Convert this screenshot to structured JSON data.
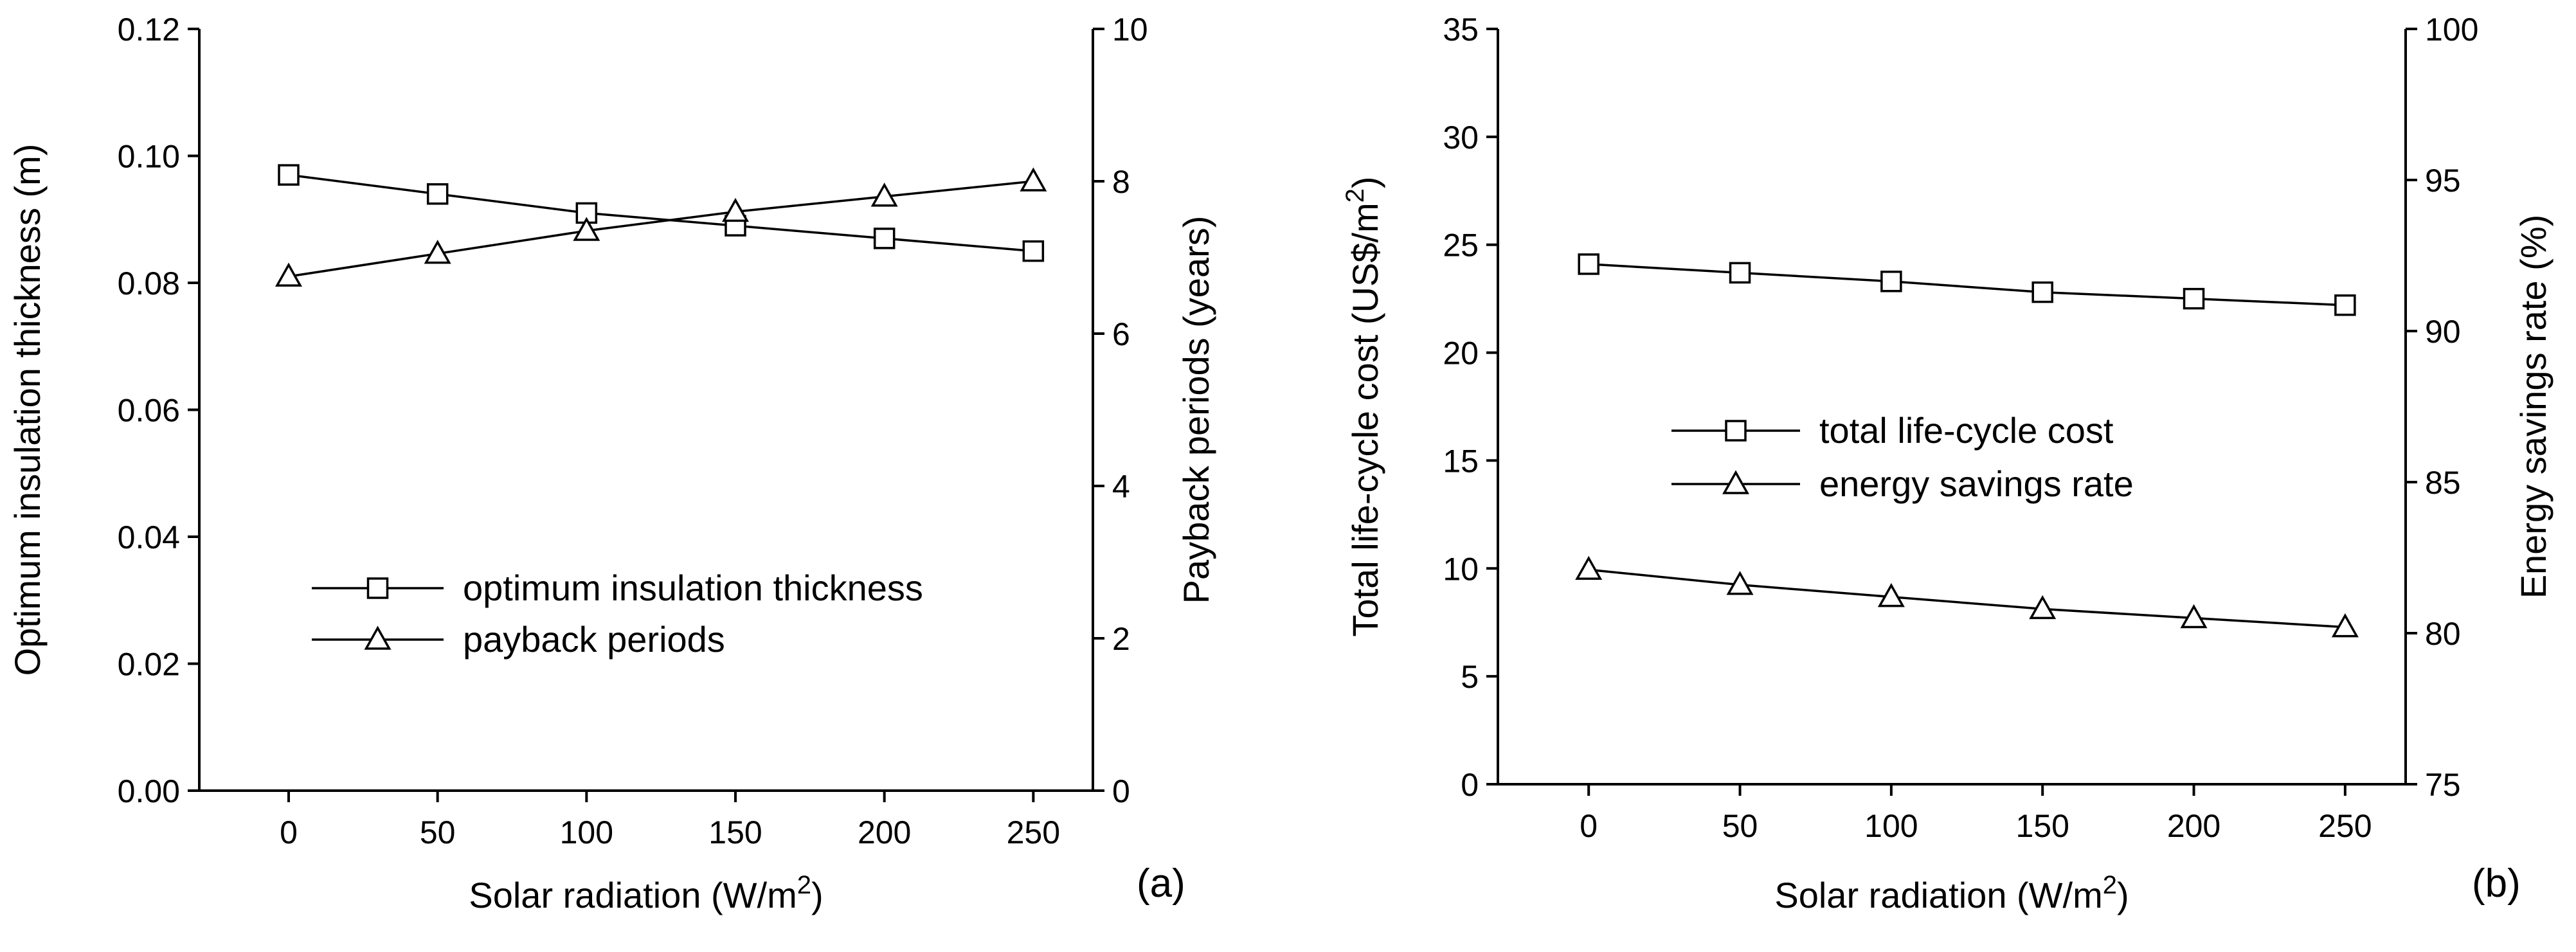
{
  "chart_data": [
    {
      "id": "a",
      "type": "line",
      "panel_label": "(a)",
      "xlabel": "Solar radiation (W/m",
      "xlabel_sup": "2",
      "xlabel_end": ")",
      "xlim": [
        -30,
        270
      ],
      "x_ticks": [
        0,
        50,
        100,
        150,
        200,
        250
      ],
      "x_tick_labels": [
        "0",
        "50",
        "100",
        "150",
        "200",
        "250"
      ],
      "ylabel_left": "Optimum insulation thickness (m)",
      "ylim_left": [
        0,
        0.12
      ],
      "y_ticks_left": [
        0,
        0.02,
        0.04,
        0.06,
        0.08,
        0.1,
        0.12
      ],
      "y_tick_labels_left": [
        "0.00",
        "0.02",
        "0.04",
        "0.06",
        "0.08",
        "0.10",
        "0.12"
      ],
      "ylabel_right": "Payback periods (years)",
      "ylim_right": [
        0,
        10
      ],
      "y_ticks_right": [
        0,
        2,
        4,
        6,
        8,
        10
      ],
      "y_tick_labels_right": [
        "0",
        "2",
        "4",
        "6",
        "8",
        "10"
      ],
      "legend_position": "lower-center",
      "series": [
        {
          "name": "optimum insulation thickness",
          "axis": "left",
          "marker": "square",
          "x": [
            0,
            50,
            100,
            150,
            200,
            250
          ],
          "values": [
            0.097,
            0.094,
            0.091,
            0.089,
            0.087,
            0.085
          ]
        },
        {
          "name": "payback periods",
          "axis": "right",
          "marker": "triangle",
          "x": [
            0,
            50,
            100,
            150,
            200,
            250
          ],
          "values": [
            6.75,
            7.05,
            7.35,
            7.6,
            7.8,
            8.0
          ]
        }
      ]
    },
    {
      "id": "b",
      "type": "line",
      "panel_label": "(b)",
      "xlabel": "Solar radiation (W/m",
      "xlabel_sup": "2",
      "xlabel_end": ")",
      "xlim": [
        -30,
        270
      ],
      "x_ticks": [
        0,
        50,
        100,
        150,
        200,
        250
      ],
      "x_tick_labels": [
        "0",
        "50",
        "100",
        "150",
        "200",
        "250"
      ],
      "ylabel_left": "Total life-cycle cost (US$/m",
      "ylabel_left_sup": "2",
      "ylabel_left_end": ")",
      "ylim_left": [
        0,
        35
      ],
      "y_ticks_left": [
        0,
        5,
        10,
        15,
        20,
        25,
        30,
        35
      ],
      "y_tick_labels_left": [
        "0",
        "5",
        "10",
        "15",
        "20",
        "25",
        "30",
        "35"
      ],
      "ylabel_right": "Energy savings rate (%)",
      "ylim_right": [
        75,
        100
      ],
      "y_ticks_right": [
        75,
        80,
        85,
        90,
        95,
        100
      ],
      "y_tick_labels_right": [
        "75",
        "80",
        "85",
        "90",
        "95",
        "100"
      ],
      "legend_position": "center",
      "series": [
        {
          "name": "total life-cycle cost",
          "axis": "left",
          "marker": "square",
          "x": [
            0,
            50,
            100,
            150,
            200,
            250
          ],
          "values": [
            24.1,
            23.7,
            23.3,
            22.8,
            22.5,
            22.2
          ]
        },
        {
          "name": "energy savings rate",
          "axis": "right",
          "marker": "triangle",
          "x": [
            0,
            50,
            100,
            150,
            200,
            250
          ],
          "values": [
            82.1,
            81.6,
            81.2,
            80.8,
            80.5,
            80.2
          ]
        }
      ]
    }
  ]
}
